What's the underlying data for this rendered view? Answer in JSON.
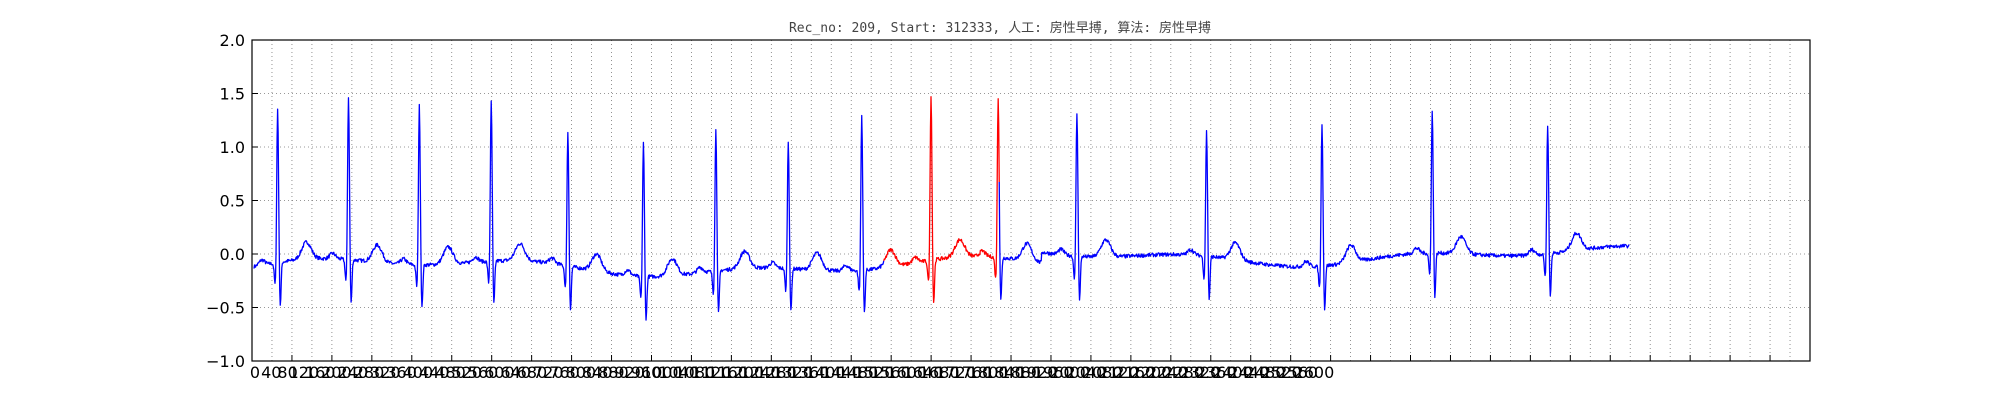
{
  "chart_data": {
    "type": "line",
    "title": "Rec_no: 209, Start: 312333, 人工: 房性早搏, 算法: 房性早搏",
    "xlabel": "",
    "ylabel": "",
    "xlim": [
      0,
      1560
    ],
    "ylim": [
      -1.0,
      2.0
    ],
    "grid": true,
    "x_major_tick_labels": [
      "0",
      "40",
      "80",
      "120",
      "160",
      "200",
      "240",
      "280",
      "320",
      "360",
      "400",
      "440",
      "480",
      "520",
      "560",
      "600",
      "640",
      "680",
      "720",
      "760",
      "800",
      "840",
      "880",
      "920",
      "960",
      "1000",
      "1040",
      "1080",
      "1120",
      "1160",
      "1200",
      "1240",
      "1280",
      "1320",
      "1360",
      "1400",
      "1440",
      "1480",
      "1520",
      "1560",
      "1600",
      "1640",
      "1680",
      "1720",
      "1760",
      "1800",
      "1840",
      "1880",
      "1920",
      "1960",
      "2000",
      "2040",
      "2080",
      "2120",
      "2160",
      "2200",
      "2240",
      "2280",
      "2320",
      "2360",
      "2400",
      "2440",
      "2480",
      "2520",
      "2560",
      "2600"
    ],
    "y_ticks": [
      "−1.0",
      "−0.5",
      "0.0",
      "0.5",
      "1.0",
      "1.5",
      "2.0"
    ],
    "x_extent": 2620,
    "series": [
      {
        "color": "#0000ff",
        "segment": [
          0,
          1200
        ]
      },
      {
        "color": "#ff0000",
        "segment": [
          1200,
          1420
        ]
      },
      {
        "color": "#0000ff",
        "segment": [
          1420,
          2620
        ]
      }
    ],
    "r_peaks": [
      {
        "x": 45,
        "amp": 1.47
      },
      {
        "x": 180,
        "amp": 1.55
      },
      {
        "x": 315,
        "amp": 1.52
      },
      {
        "x": 452,
        "amp": 1.52
      },
      {
        "x": 598,
        "amp": 1.28
      },
      {
        "x": 742,
        "amp": 1.28
      },
      {
        "x": 880,
        "amp": 1.35
      },
      {
        "x": 1018,
        "amp": 1.22
      },
      {
        "x": 1158,
        "amp": 1.48
      },
      {
        "x": 1290,
        "amp": 1.58
      },
      {
        "x": 1418,
        "amp": 1.53
      },
      {
        "x": 1568,
        "amp": 1.37
      },
      {
        "x": 1815,
        "amp": 1.2
      },
      {
        "x": 2035,
        "amp": 1.37
      },
      {
        "x": 2245,
        "amp": 1.37
      },
      {
        "x": 2465,
        "amp": 1.24
      }
    ]
  }
}
